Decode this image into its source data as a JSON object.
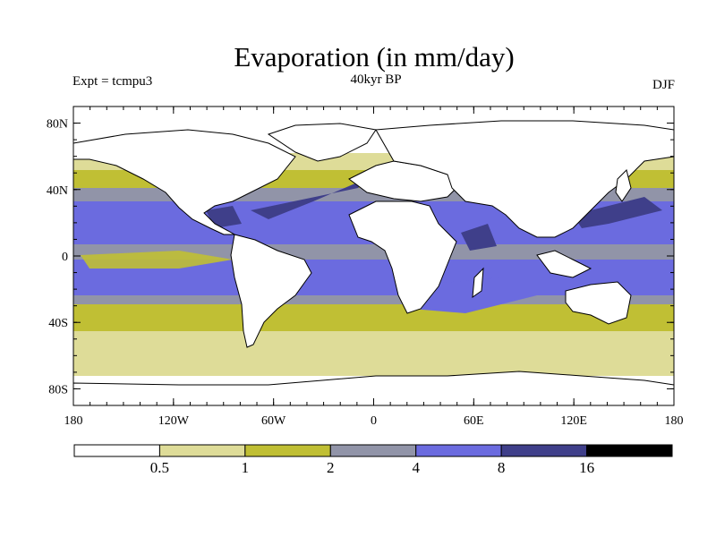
{
  "title": "Evaporation (in mm/day)",
  "expt_label": "Expt = tcmpu3",
  "period_label": "40kyr BP",
  "season_label": "DJF",
  "lat_ticks": [
    {
      "value": 80,
      "label": "80N"
    },
    {
      "value": 40,
      "label": "40N"
    },
    {
      "value": 0,
      "label": "0"
    },
    {
      "value": -40,
      "label": "40S"
    },
    {
      "value": -80,
      "label": "80S"
    }
  ],
  "lon_ticks": [
    {
      "value": -180,
      "label": "180"
    },
    {
      "value": -120,
      "label": "120W"
    },
    {
      "value": -60,
      "label": "60W"
    },
    {
      "value": 0,
      "label": "0"
    },
    {
      "value": 60,
      "label": "60E"
    },
    {
      "value": 120,
      "label": "120E"
    },
    {
      "value": 180,
      "label": "180"
    }
  ],
  "colorbar": {
    "colors": [
      "#ffffff",
      "#dedc98",
      "#c0bf34",
      "#9194a8",
      "#6b6bdf",
      "#3f3f8a",
      "#000000"
    ],
    "labels": [
      "0.5",
      "1",
      "2",
      "4",
      "8",
      "16"
    ]
  },
  "land_color": "#ffffff",
  "ocean_base_color": "#9194a8"
}
